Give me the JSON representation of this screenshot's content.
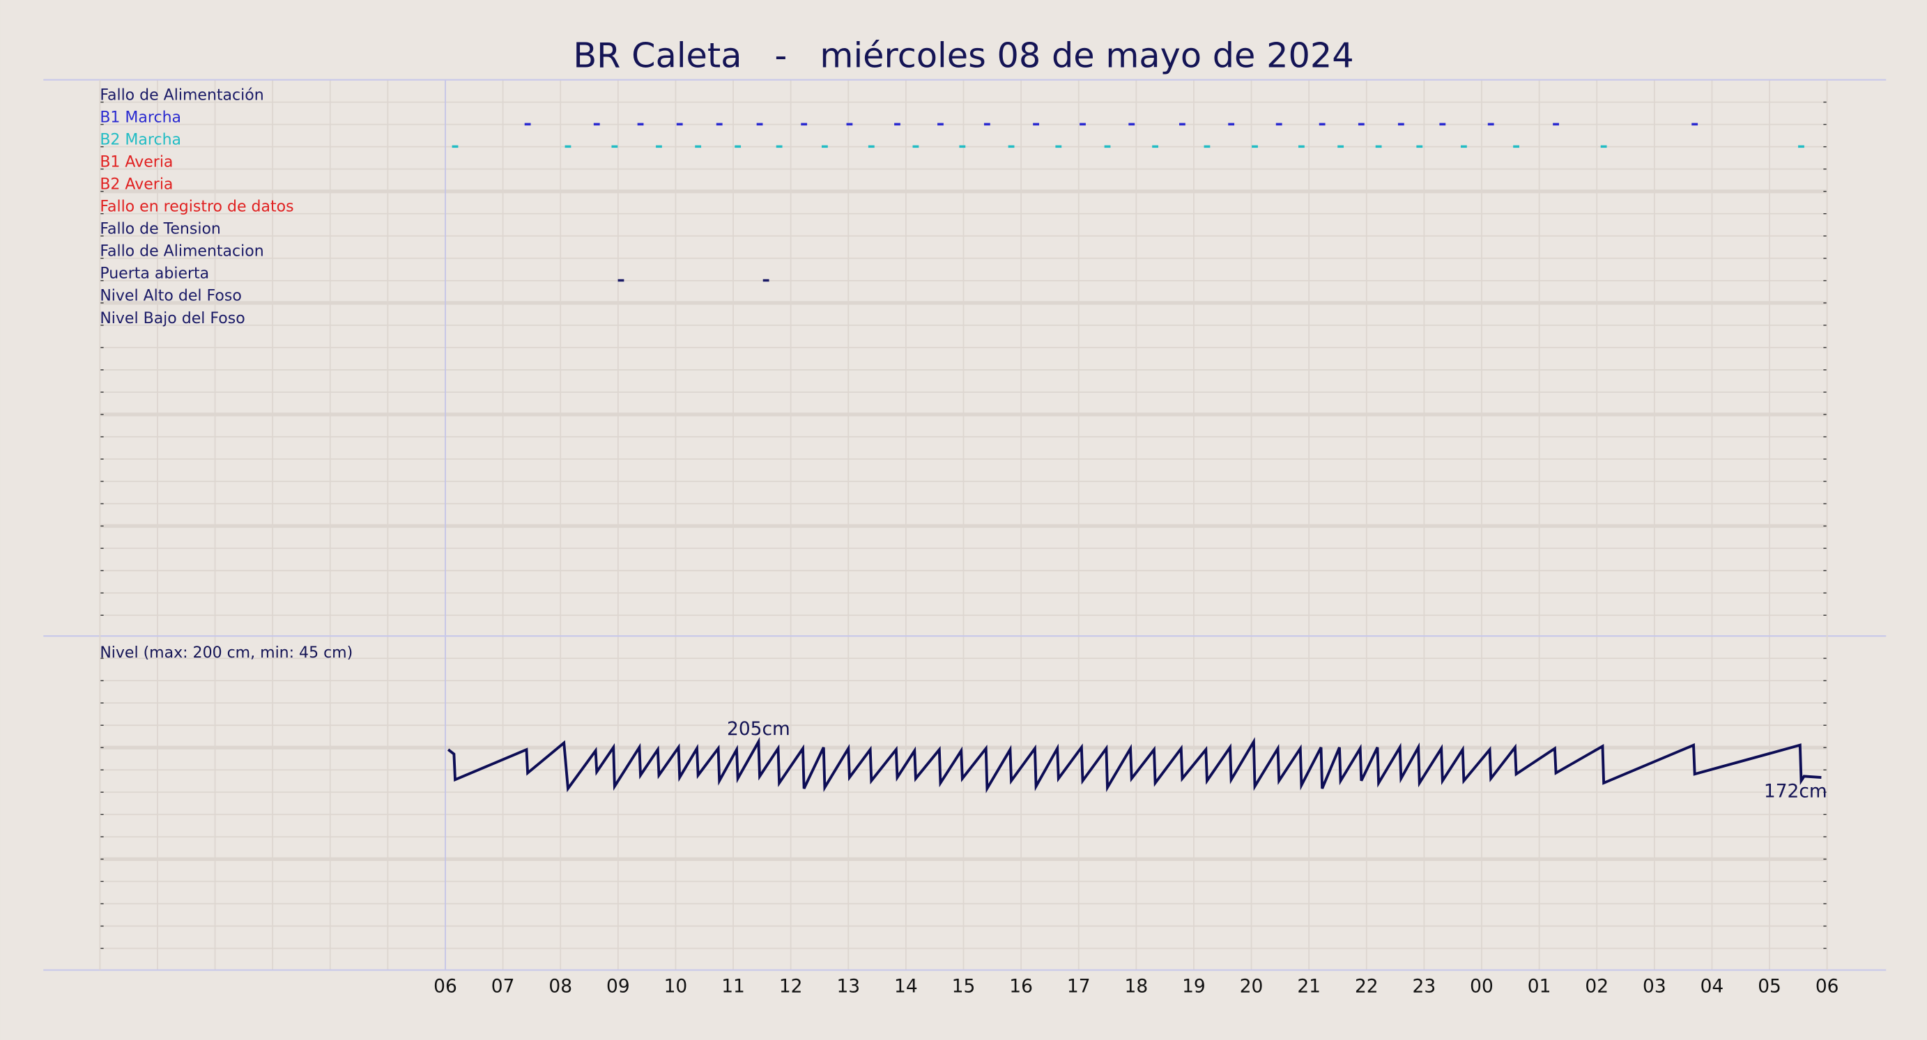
{
  "chart_data": [
    {
      "type": "event",
      "title": "BR Caleta   -   miércoles 08 de mayo de 2024",
      "xlim": [
        0,
        30
      ],
      "series": [
        {
          "name": "Fallo de Alimentación",
          "color": "#1a1a66"
        },
        {
          "name": "B1 Marcha",
          "color": "#2a2ad0",
          "x": [
            7.43,
            8.63,
            9.39,
            10.07,
            10.76,
            11.46,
            12.23,
            13.02,
            13.85,
            14.6,
            15.41,
            16.26,
            17.07,
            17.92,
            18.8,
            19.65,
            20.48,
            21.23,
            21.91,
            22.6,
            23.32,
            24.16,
            25.29,
            27.7
          ]
        },
        {
          "name": "B2 Marcha",
          "color": "#22bcc4",
          "x": [
            6.17,
            8.13,
            8.94,
            9.71,
            10.39,
            11.08,
            11.8,
            12.59,
            13.4,
            14.17,
            14.98,
            15.83,
            16.65,
            17.5,
            18.33,
            19.23,
            20.06,
            20.87,
            21.55,
            22.21,
            22.92,
            23.69,
            24.6,
            26.12,
            29.55
          ]
        },
        {
          "name": "B1 Averia",
          "color": "#e02020"
        },
        {
          "name": "B2 Averia",
          "color": "#e02020"
        },
        {
          "name": "Fallo en registro de datos",
          "color": "#e02020"
        },
        {
          "name": "Fallo de Tension",
          "color": "#1a1a66"
        },
        {
          "name": "Fallo de Alimentacion",
          "color": "#1a1a66"
        },
        {
          "name": "Puerta abierta",
          "color": "#1a1a66",
          "x": [
            9.05,
            11.57
          ]
        },
        {
          "name": "Nivel Alto del Foso",
          "color": "#1a1a66"
        },
        {
          "name": "Nivel Bajo del Foso",
          "color": "#1a1a66"
        }
      ]
    },
    {
      "type": "line",
      "ylabel": "Nivel (max: 200 cm, min: 45 cm)",
      "color": "#0d0d55",
      "xlim": [
        0,
        30
      ],
      "ylim": [
        0,
        300
      ],
      "xticks": [
        {
          "value": 6,
          "label": "06"
        },
        {
          "value": 7,
          "label": "07"
        },
        {
          "value": 8,
          "label": "08"
        },
        {
          "value": 9,
          "label": "09"
        },
        10,
        11,
        12,
        13,
        14,
        15,
        16,
        17,
        18,
        19,
        20,
        21,
        22,
        23,
        {
          "value": 24,
          "label": "00"
        },
        {
          "value": 25,
          "label": "01"
        },
        {
          "value": 26,
          "label": "02"
        },
        {
          "value": 27,
          "label": "03"
        },
        {
          "value": 28,
          "label": "04"
        },
        {
          "value": 29,
          "label": "05"
        },
        {
          "value": 30,
          "label": "06"
        }
      ],
      "x": [
        6.05,
        6.15,
        6.17,
        7.41,
        7.43,
        8.06,
        8.13,
        8.61,
        8.63,
        8.92,
        8.94,
        9.37,
        9.39,
        9.69,
        9.71,
        10.05,
        10.07,
        10.37,
        10.39,
        10.74,
        10.76,
        11.06,
        11.08,
        11.44,
        11.46,
        11.78,
        11.8,
        12.21,
        12.23,
        12.57,
        12.59,
        13.0,
        13.02,
        13.38,
        13.4,
        13.83,
        13.85,
        14.15,
        14.17,
        14.58,
        14.6,
        14.96,
        14.98,
        15.39,
        15.41,
        15.81,
        15.83,
        16.24,
        16.26,
        16.63,
        16.65,
        17.05,
        17.07,
        17.48,
        17.5,
        17.9,
        17.92,
        18.31,
        18.33,
        18.78,
        18.8,
        19.21,
        19.23,
        19.63,
        19.65,
        20.04,
        20.06,
        20.46,
        20.48,
        20.85,
        20.87,
        21.21,
        21.23,
        21.53,
        21.55,
        21.89,
        21.91,
        22.19,
        22.21,
        22.58,
        22.6,
        22.9,
        22.92,
        23.3,
        23.32,
        23.67,
        23.69,
        24.14,
        24.16,
        24.58,
        24.6,
        25.27,
        25.29,
        26.1,
        26.12,
        27.68,
        27.7,
        29.53,
        29.55,
        29.6,
        29.9
      ],
      "values": [
        198,
        194,
        171,
        198,
        177,
        204,
        163,
        197,
        178,
        200,
        165,
        200,
        175,
        198,
        175,
        200,
        173,
        199,
        175,
        199,
        170,
        198,
        172,
        205,
        174,
        199,
        168,
        199,
        163,
        200,
        164,
        199,
        173,
        198,
        170,
        198,
        173,
        197,
        172,
        198,
        168,
        197,
        172,
        199,
        163,
        198,
        170,
        199,
        165,
        199,
        172,
        200,
        170,
        199,
        164,
        199,
        172,
        198,
        168,
        199,
        172,
        198,
        170,
        200,
        171,
        205,
        165,
        199,
        170,
        199,
        166,
        200,
        163,
        200,
        170,
        199,
        170,
        200,
        168,
        200,
        172,
        200,
        168,
        199,
        170,
        198,
        170,
        198,
        172,
        200,
        176,
        199,
        177,
        201,
        168,
        202,
        176,
        202,
        170,
        174,
        173
      ],
      "annotations": [
        "205cm",
        "172cm"
      ]
    }
  ]
}
